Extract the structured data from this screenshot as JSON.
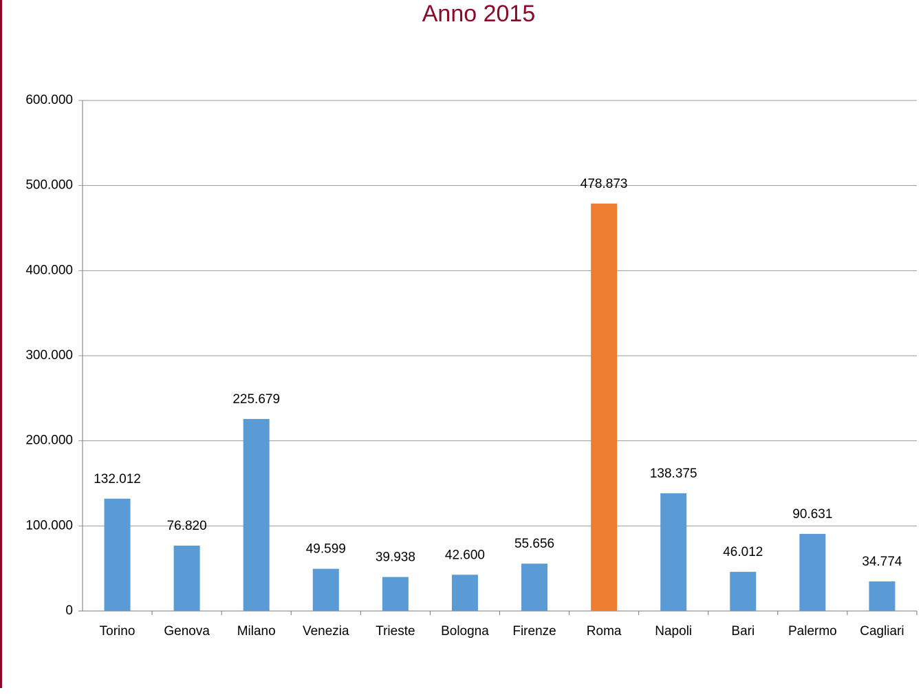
{
  "chart_data": {
    "type": "bar",
    "title": "Anno 2015",
    "categories": [
      "Torino",
      "Genova",
      "Milano",
      "Venezia",
      "Trieste",
      "Bologna",
      "Firenze",
      "Roma",
      "Napoli",
      "Bari",
      "Palermo",
      "Cagliari"
    ],
    "values": [
      132012,
      76820,
      225679,
      49599,
      39938,
      42600,
      55656,
      478873,
      138375,
      46012,
      90631,
      34774
    ],
    "value_labels": [
      "132.012",
      "76.820",
      "225.679",
      "49.599",
      "39.938",
      "42.600",
      "55.656",
      "478.873",
      "138.375",
      "46.012",
      "90.631",
      "34.774"
    ],
    "colors": [
      "#5b9bd5",
      "#5b9bd5",
      "#5b9bd5",
      "#5b9bd5",
      "#5b9bd5",
      "#5b9bd5",
      "#5b9bd5",
      "#ed7d31",
      "#5b9bd5",
      "#5b9bd5",
      "#5b9bd5",
      "#5b9bd5"
    ],
    "ylim": [
      0,
      600000
    ],
    "yticks": [
      0,
      {
        "value": 100000,
        "label": "100.000"
      },
      {
        "value": 200000,
        "label": "200.000"
      },
      {
        "value": 300000,
        "label": "300.000"
      },
      {
        "value": 400000,
        "label": "400.000"
      },
      {
        "value": 500000,
        "label": "500.000"
      },
      {
        "value": 600000,
        "label": "600.000"
      }
    ],
    "grid": true
  }
}
